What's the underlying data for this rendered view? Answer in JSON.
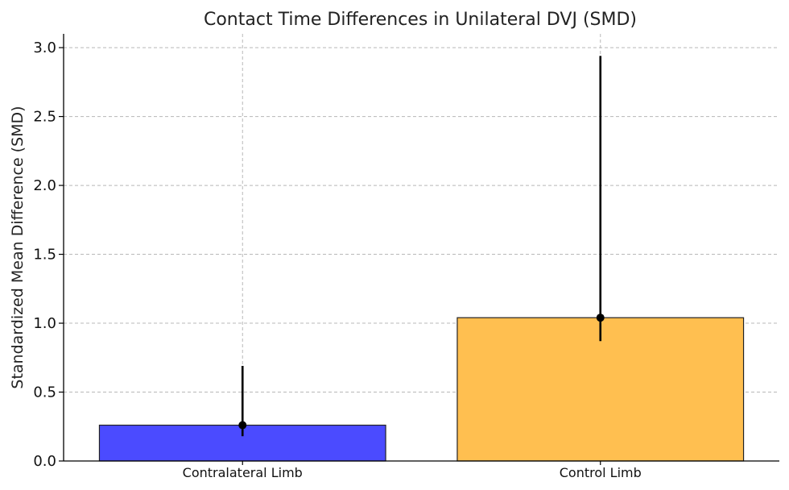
{
  "chart_data": {
    "type": "bar",
    "title": "Contact Time Differences in Unilateral DVJ (SMD)",
    "xlabel": "",
    "ylabel": "Standardized Mean Difference (SMD)",
    "ylim": [
      0,
      3.1
    ],
    "yticks": [
      0.0,
      0.5,
      1.0,
      1.5,
      2.0,
      2.5,
      3.0
    ],
    "ytick_labels": [
      "0.0",
      "0.5",
      "1.0",
      "1.5",
      "2.0",
      "2.5",
      "3.0"
    ],
    "grid": true,
    "categories": [
      "Contralateral Limb",
      "Control Limb"
    ],
    "values": [
      0.26,
      1.04
    ],
    "error_bars": [
      {
        "lower": 0.18,
        "upper": 0.69
      },
      {
        "lower": 0.87,
        "upper": 2.94
      }
    ],
    "colors": [
      "#4b4bff",
      "#ffbf50"
    ],
    "edge_color": "#222222",
    "error_color": "#000000"
  }
}
